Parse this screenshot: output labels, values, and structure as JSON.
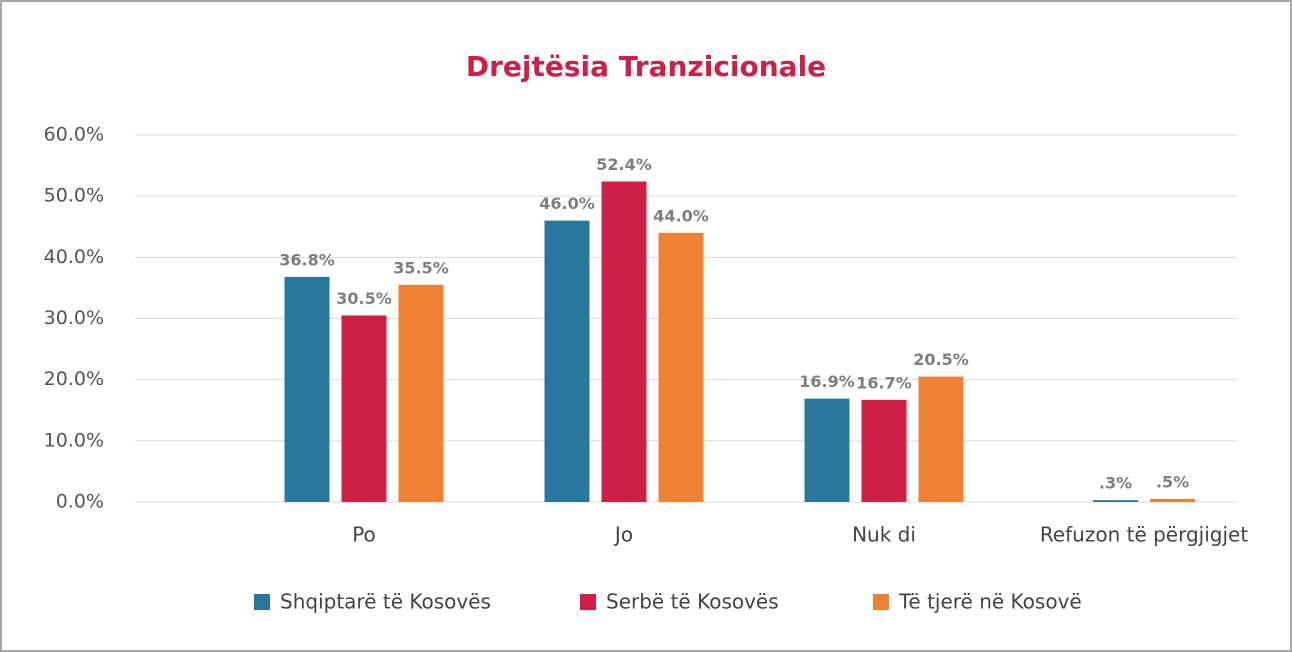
{
  "chart_data": {
    "type": "bar",
    "title": "Drejtësia Tranzicionale",
    "categories": [
      "Po",
      "Jo",
      "Nuk di",
      "Refuzon të përgjigjet"
    ],
    "series": [
      {
        "name": "Shqiptarë të Kosovës",
        "color": "#28789e",
        "values": [
          36.8,
          46.0,
          16.9,
          0.3
        ],
        "value_labels": [
          "36.8%",
          "46.0%",
          "16.9%",
          ".3%"
        ]
      },
      {
        "name": "Serbë të Kosovës",
        "color": "#d01f44",
        "values": [
          30.5,
          52.4,
          16.7,
          null
        ],
        "value_labels": [
          "30.5%",
          "52.4%",
          "16.7%",
          null
        ]
      },
      {
        "name": "Të tjerë në Kosovë",
        "color": "#ef8133",
        "values": [
          35.5,
          44.0,
          20.5,
          0.5
        ],
        "value_labels": [
          "35.5%",
          "44.0%",
          "20.5%",
          ".5%"
        ]
      }
    ],
    "ylim": [
      0,
      60
    ],
    "yticks": [
      {
        "value": 0,
        "label": "0.0%"
      },
      {
        "value": 10,
        "label": "10.0%"
      },
      {
        "value": 20,
        "label": "20.0%"
      },
      {
        "value": 30,
        "label": "30.0%"
      },
      {
        "value": 40,
        "label": "40.0%"
      },
      {
        "value": 50,
        "label": "50.0%"
      },
      {
        "value": 60,
        "label": "60.0%"
      }
    ],
    "grid": true
  }
}
